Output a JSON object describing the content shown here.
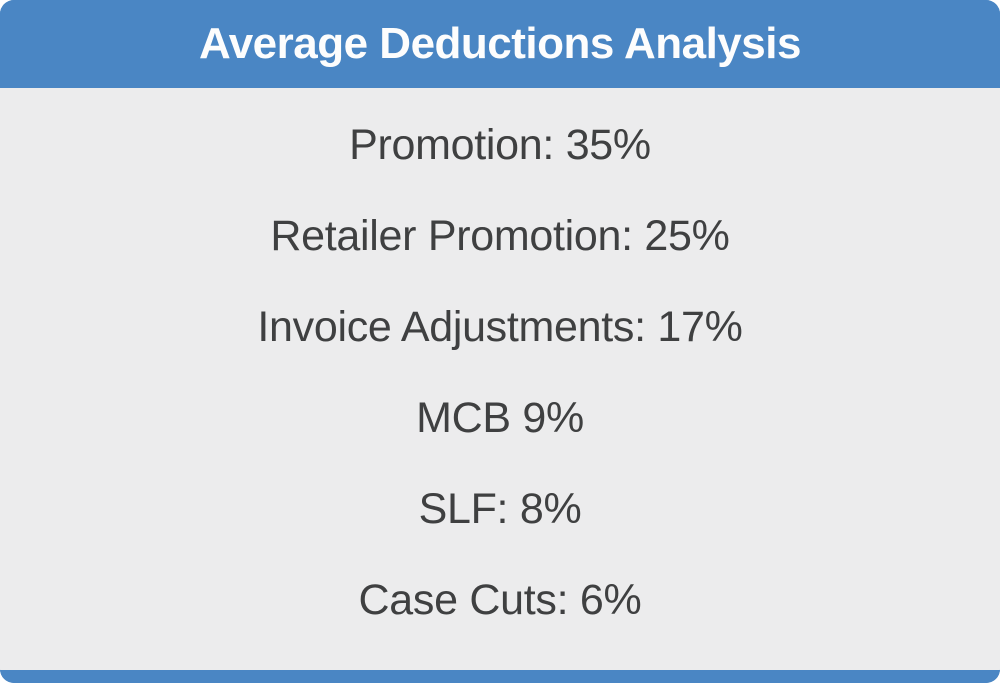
{
  "card": {
    "title": "Average Deductions Analysis",
    "items": [
      {
        "text": "Promotion: 35%",
        "name": "Promotion",
        "value_pct": 35
      },
      {
        "text": "Retailer Promotion: 25%",
        "name": "Retailer Promotion",
        "value_pct": 25
      },
      {
        "text": "Invoice Adjustments: 17%",
        "name": "Invoice Adjustments",
        "value_pct": 17
      },
      {
        "text": "MCB 9%",
        "name": "MCB",
        "value_pct": 9
      },
      {
        "text": "SLF: 8%",
        "name": "SLF",
        "value_pct": 8
      },
      {
        "text": "Case Cuts: 6%",
        "name": "Case Cuts",
        "value_pct": 6
      }
    ],
    "colors": {
      "header_background": "#4A86C4",
      "body_background": "#ECECED",
      "body_text": "#3F4041",
      "title_text": "#FDFDFD"
    }
  }
}
